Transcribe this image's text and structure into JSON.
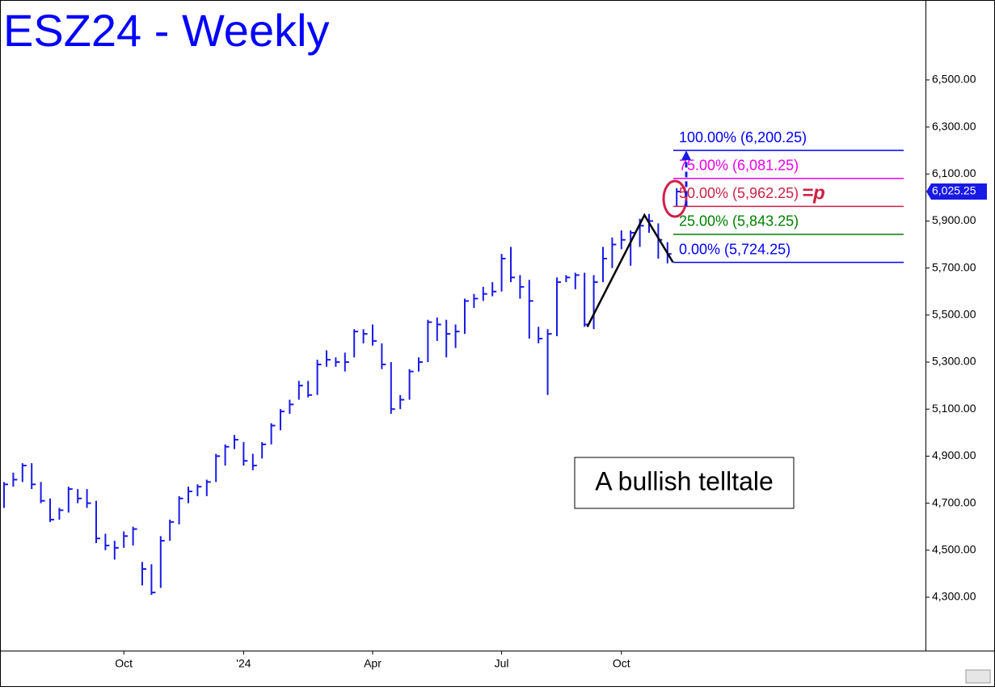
{
  "chart_data": {
    "type": "ohlc",
    "title": "ESZ24 - Weekly",
    "color": "#1a1ae6",
    "categories": [
      null,
      null,
      null,
      null,
      null,
      null,
      null,
      null,
      null,
      null,
      null,
      null,
      null,
      "Oct",
      null,
      null,
      null,
      null,
      null,
      null,
      null,
      null,
      null,
      null,
      null,
      null,
      "'24",
      null,
      null,
      null,
      null,
      null,
      null,
      null,
      null,
      null,
      null,
      null,
      null,
      null,
      "Apr",
      null,
      null,
      null,
      null,
      null,
      null,
      null,
      null,
      null,
      null,
      null,
      null,
      null,
      "Jul",
      null,
      null,
      null,
      null,
      null,
      null,
      null,
      null,
      null,
      null,
      null,
      null,
      "Oct",
      null,
      null,
      null,
      null,
      null,
      null
    ],
    "high": [
      4790,
      4830,
      4870,
      4870,
      4790,
      4720,
      4680,
      4770,
      4760,
      4760,
      4710,
      4570,
      4540,
      4580,
      4600,
      4450,
      4440,
      4560,
      4630,
      4730,
      4770,
      4780,
      4800,
      4910,
      4950,
      4990,
      4960,
      4910,
      4960,
      5040,
      5100,
      5140,
      5220,
      5220,
      5310,
      5350,
      5320,
      5340,
      5440,
      5440,
      5460,
      5380,
      5300,
      5160,
      5270,
      5320,
      5480,
      5490,
      5480,
      5460,
      5570,
      5590,
      5620,
      5640,
      5760,
      5790,
      5670,
      5650,
      5450,
      5440,
      5660,
      5670,
      5680,
      5680,
      5670,
      5790,
      5830,
      5860,
      5860,
      5910,
      5930,
      5890,
      5810,
      6040
    ],
    "low": [
      4680,
      4770,
      4790,
      4760,
      4700,
      4620,
      4630,
      4660,
      4700,
      4680,
      4530,
      4500,
      4460,
      4510,
      4520,
      4350,
      4310,
      4340,
      4540,
      4610,
      4700,
      4730,
      4730,
      4790,
      4860,
      4930,
      4860,
      4840,
      4890,
      4950,
      5010,
      5080,
      5140,
      5150,
      5160,
      5280,
      5280,
      5260,
      5320,
      5380,
      5370,
      5270,
      5080,
      5100,
      5140,
      5260,
      5300,
      5390,
      5320,
      5360,
      5420,
      5530,
      5560,
      5580,
      5600,
      5640,
      5570,
      5400,
      5380,
      5160,
      5410,
      5640,
      5610,
      5450,
      5440,
      5640,
      5700,
      5780,
      5710,
      5790,
      5850,
      5740,
      5720,
      5960
    ],
    "close": [
      4780,
      4800,
      4860,
      4780,
      4710,
      4630,
      4670,
      4760,
      4720,
      4700,
      4550,
      4520,
      4510,
      4560,
      4590,
      4420,
      4320,
      4540,
      4620,
      4720,
      4750,
      4770,
      4790,
      4900,
      4940,
      4970,
      4880,
      4860,
      4950,
      5030,
      5090,
      5120,
      5200,
      5160,
      5290,
      5310,
      5300,
      5300,
      5430,
      5420,
      5390,
      5290,
      5100,
      5140,
      5260,
      5300,
      5470,
      5460,
      5420,
      5430,
      5560,
      5570,
      5590,
      5600,
      5740,
      5660,
      5620,
      5560,
      5400,
      5420,
      5640,
      5660,
      5670,
      5460,
      5640,
      5740,
      5800,
      5820,
      5850,
      5880,
      5900,
      5820,
      5760,
      6025.25
    ],
    "last_price": {
      "value": 6025.25,
      "label": "6,025.25"
    },
    "ylim": [
      4073,
      6840
    ],
    "yticks": [
      {
        "value": 4300,
        "label": "4,300.00"
      },
      {
        "value": 4500,
        "label": "4,500.00"
      },
      {
        "value": 4700,
        "label": "4,700.00"
      },
      {
        "value": 4900,
        "label": "4,900.00"
      },
      {
        "value": 5100,
        "label": "5,100.00"
      },
      {
        "value": 5300,
        "label": "5,300.00"
      },
      {
        "value": 5500,
        "label": "5,500.00"
      },
      {
        "value": 5700,
        "label": "5,700.00"
      },
      {
        "value": 5900,
        "label": "5,900.00"
      },
      {
        "value": 6100,
        "label": "6,100.00"
      },
      {
        "value": 6300,
        "label": "6,300.00"
      },
      {
        "value": 6500,
        "label": "6,500.00"
      }
    ],
    "levels": [
      {
        "value": 6200.25,
        "label": "100.00% (6,200.25)",
        "color": "#0000ff"
      },
      {
        "value": 6081.25,
        "label": "75.00% (6,081.25)",
        "color": "#ee00ee"
      },
      {
        "value": 5962.25,
        "label": "50.00% (5,962.25)",
        "color": "#cc2244"
      },
      {
        "value": 5843.25,
        "label": "25.00% (5,843.25)",
        "color": "#008000"
      },
      {
        "value": 5724.25,
        "label": "0.00% (5,724.25)",
        "color": "#0000ff"
      }
    ],
    "pivot_label": "=p",
    "pattern": {
      "x": [
        63.3,
        69.5,
        72.6
      ],
      "values": [
        5450,
        5925,
        5724.25
      ]
    },
    "annotation": "A bullish telltale"
  }
}
